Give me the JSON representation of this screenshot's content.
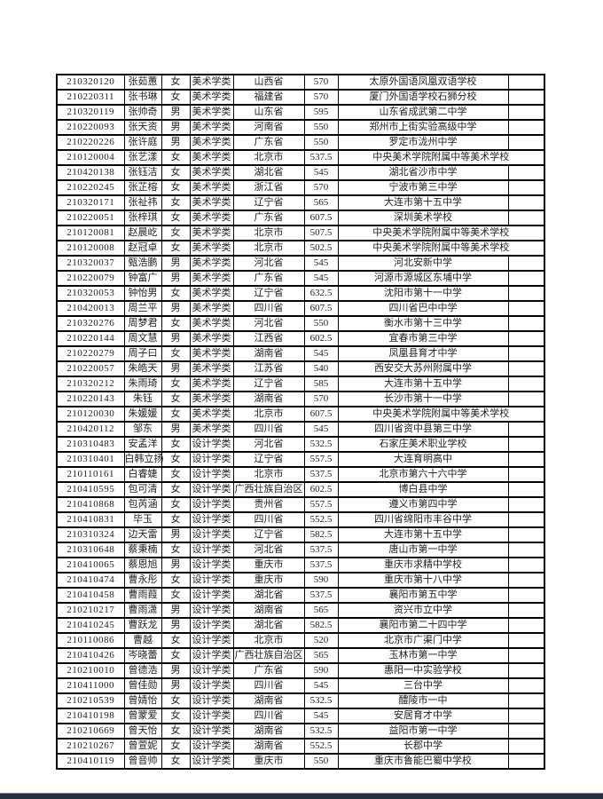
{
  "page": {
    "background_color": "#ffffff",
    "text_color": "#1f1f1f",
    "table_border_color": "#000000",
    "bottom_bar_color": "#243140",
    "bottom_bar_highlight_color": "#6b8ba4"
  },
  "table": {
    "columns": [
      "id",
      "name",
      "gender",
      "category",
      "province",
      "score",
      "school",
      "blank"
    ],
    "rows": [
      [
        "210320120",
        "张茹蕙",
        "女",
        "美术学类",
        "山西省",
        "570",
        "太原外国语凤凰双语学校",
        ""
      ],
      [
        "210220311",
        "张书琳",
        "女",
        "美术学类",
        "福建省",
        "570",
        "厦门外国语学校石狮分校",
        ""
      ],
      [
        "210320119",
        "张帅奇",
        "男",
        "美术学类",
        "山东省",
        "595",
        "山东省成武第二中学",
        ""
      ],
      [
        "210220093",
        "张天资",
        "男",
        "美术学类",
        "河南省",
        "550",
        "郑州市上街实验高级中学",
        ""
      ],
      [
        "210220226",
        "张许庭",
        "男",
        "美术学类",
        "广东省",
        "550",
        "罗定市泷州中学",
        ""
      ],
      [
        "210120004",
        "张艺漾",
        "女",
        "美术学类",
        "北京市",
        "537.5",
        "中央美术学院附属中等美术学校",
        ""
      ],
      [
        "210420138",
        "张钰洁",
        "女",
        "美术学类",
        "湖北省",
        "545",
        "湖北省沙市中学",
        ""
      ],
      [
        "210220245",
        "张芷榕",
        "女",
        "美术学类",
        "浙江省",
        "570",
        "宁波市第三中学",
        ""
      ],
      [
        "210320171",
        "张祉祎",
        "女",
        "美术学类",
        "辽宁省",
        "565",
        "大连市第十五中学",
        ""
      ],
      [
        "210220051",
        "张梓琪",
        "女",
        "美术学类",
        "广东省",
        "607.5",
        "深圳美术学校",
        ""
      ],
      [
        "210120081",
        "赵晨屹",
        "女",
        "美术学类",
        "北京市",
        "507.5",
        "中央美术学院附属中等美术学校",
        ""
      ],
      [
        "210120008",
        "赵冠卓",
        "女",
        "美术学类",
        "北京市",
        "502.5",
        "中央美术学院附属中等美术学校",
        ""
      ],
      [
        "210320037",
        "甄浩鹏",
        "男",
        "美术学类",
        "河北省",
        "545",
        "河北安新中学",
        ""
      ],
      [
        "210220079",
        "钟富广",
        "男",
        "美术学类",
        "广东省",
        "545",
        "河源市源城区东埔中学",
        ""
      ],
      [
        "210320053",
        "钟怡男",
        "女",
        "美术学类",
        "辽宁省",
        "632.5",
        "沈阳市第十一中学",
        ""
      ],
      [
        "210420013",
        "周兰平",
        "男",
        "美术学类",
        "四川省",
        "607.5",
        "四川省巴中中学",
        ""
      ],
      [
        "210320276",
        "周梦君",
        "女",
        "美术学类",
        "河北省",
        "550",
        "衡水市第十三中学",
        ""
      ],
      [
        "210220144",
        "周文慧",
        "男",
        "美术学类",
        "江西省",
        "602.5",
        "宜春市第三中学",
        ""
      ],
      [
        "210220279",
        "周子曰",
        "女",
        "美术学类",
        "湖南省",
        "545",
        "凤凰县育才中学",
        ""
      ],
      [
        "210220057",
        "朱皓天",
        "男",
        "美术学类",
        "江苏省",
        "540",
        "西安交大苏州附属中学",
        ""
      ],
      [
        "210320212",
        "朱雨琦",
        "女",
        "美术学类",
        "辽宁省",
        "585",
        "大连市第十五中学",
        ""
      ],
      [
        "210220143",
        "朱钰",
        "女",
        "美术学类",
        "湖南省",
        "570",
        "长沙市第十一中学",
        ""
      ],
      [
        "210120030",
        "朱媛媛",
        "女",
        "美术学类",
        "北京市",
        "607.5",
        "中央美术学院附属中等美术学校",
        ""
      ],
      [
        "210420112",
        "邹东",
        "男",
        "美术学类",
        "四川省",
        "545",
        "四川省资中县第三中学",
        ""
      ],
      [
        "210310483",
        "安孟洋",
        "女",
        "设计学类",
        "河北省",
        "532.5",
        "石家庄美术职业学校",
        ""
      ],
      [
        "210310401",
        "白韩立扬",
        "女",
        "设计学类",
        "辽宁省",
        "557.5",
        "大连育明高中",
        ""
      ],
      [
        "210110161",
        "白睿婕",
        "女",
        "设计学类",
        "北京市",
        "537.5",
        "北京市第六十六中学",
        ""
      ],
      [
        "210410595",
        "包可清",
        "女",
        "设计学类",
        "广西壮族自治区",
        "602.5",
        "博白县中学",
        ""
      ],
      [
        "210410868",
        "包芮涵",
        "女",
        "设计学类",
        "贵州省",
        "557.5",
        "遵义市第四中学",
        ""
      ],
      [
        "210410831",
        "毕玉",
        "女",
        "设计学类",
        "四川省",
        "552.5",
        "四川省绵阳市丰谷中学",
        ""
      ],
      [
        "210310324",
        "边天雷",
        "男",
        "设计学类",
        "辽宁省",
        "582.5",
        "大连市第十五中学",
        ""
      ],
      [
        "210310648",
        "蔡秉楠",
        "女",
        "设计学类",
        "河北省",
        "537.5",
        "唐山市第一中学",
        ""
      ],
      [
        "210410065",
        "蔡恩旭",
        "男",
        "设计学类",
        "重庆市",
        "537.5",
        "重庆市求精中学校",
        ""
      ],
      [
        "210410474",
        "曹永彤",
        "女",
        "设计学类",
        "重庆市",
        "590",
        "重庆市第十八中学",
        ""
      ],
      [
        "210410458",
        "曹雨葭",
        "女",
        "设计学类",
        "湖北省",
        "537.5",
        "襄阳市第五中学",
        ""
      ],
      [
        "210210217",
        "曹雨潇",
        "男",
        "设计学类",
        "湖南省",
        "565",
        "资兴市立中学",
        ""
      ],
      [
        "210410245",
        "曹跃龙",
        "男",
        "设计学类",
        "湖北省",
        "582.5",
        "襄阳市第二十四中学",
        ""
      ],
      [
        "210110086",
        "曹越",
        "女",
        "设计学类",
        "北京市",
        "520",
        "北京市广渠门中学",
        ""
      ],
      [
        "210410426",
        "岑晓蕾",
        "女",
        "设计学类",
        "广西壮族自治区",
        "565",
        "玉林市第一中学",
        ""
      ],
      [
        "210210010",
        "曾德浩",
        "男",
        "设计学类",
        "广东省",
        "590",
        "惠阳一中实验学校",
        ""
      ],
      [
        "210411000",
        "曾佳勋",
        "男",
        "设计学类",
        "四川省",
        "545",
        "三台中学",
        ""
      ],
      [
        "210210539",
        "曾婧怡",
        "女",
        "设计学类",
        "湖南省",
        "532.5",
        "醴陵市一中",
        ""
      ],
      [
        "210410198",
        "曾蒙爱",
        "女",
        "设计学类",
        "四川省",
        "545",
        "安居育才中学",
        ""
      ],
      [
        "210210669",
        "曾天怡",
        "女",
        "设计学类",
        "湖南省",
        "532.5",
        "益阳市第一中学",
        ""
      ],
      [
        "210210267",
        "曾萱妮",
        "女",
        "设计学类",
        "湖南省",
        "552.5",
        "长郡中学",
        ""
      ],
      [
        "210410119",
        "曾音帅",
        "女",
        "设计学类",
        "重庆市",
        "550",
        "重庆市鲁能巴蜀中学校",
        ""
      ]
    ]
  }
}
